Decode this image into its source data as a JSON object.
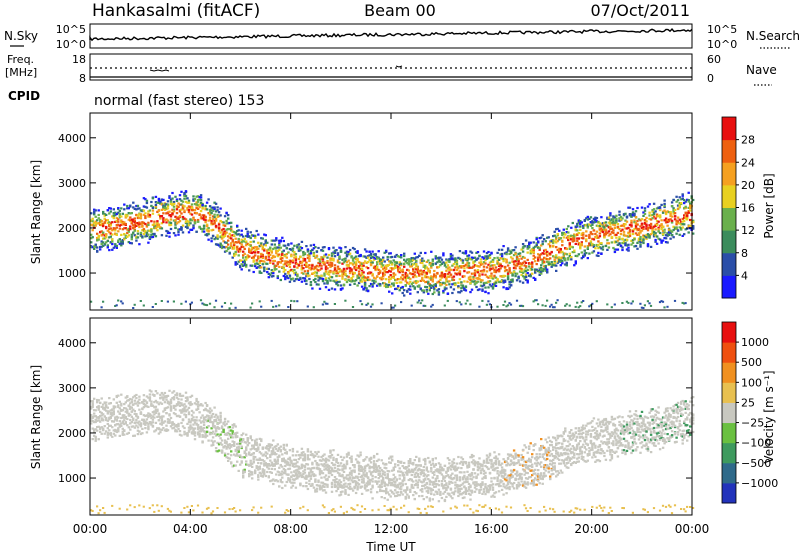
{
  "header": {
    "site": "Hankasalmi (fitACF)",
    "beam": "Beam 00",
    "date": "07/Oct/2011"
  },
  "nsky_panel": {
    "left_label": "N.Sky",
    "right_label": "N.Search",
    "left_ticks": [
      "10^5",
      "10^0"
    ],
    "right_ticks": [
      "10^5",
      "10^0"
    ]
  },
  "freq_panel": {
    "left_label_line1": "Freq.",
    "left_label_line2": "[MHz]",
    "right_label": "Nave",
    "left_ticks": [
      "18",
      "8"
    ],
    "right_ticks": [
      "60",
      "0"
    ]
  },
  "cpid": {
    "label": "CPID",
    "text": "normal (fast stereo) 153"
  },
  "time_axis": {
    "label": "Time UT",
    "ticks": [
      "00:00",
      "04:00",
      "08:00",
      "12:00",
      "16:00",
      "20:00",
      "00:00"
    ]
  },
  "chart_data": [
    {
      "type": "heatmap",
      "title": "",
      "ylabel": "Slant Range [km]",
      "xlabel": "Time UT",
      "xlim_hours": [
        0,
        24
      ],
      "ylim": [
        180,
        4550
      ],
      "yticks": [
        "1000",
        "2000",
        "3000",
        "4000"
      ],
      "colorbar": {
        "label": "Power [dB]",
        "ticks": [
          "4",
          "8",
          "12",
          "16",
          "20",
          "24",
          "28"
        ],
        "colors": [
          "#1a1aff",
          "#2a4ea8",
          "#3b8c5c",
          "#6ab04c",
          "#e8d020",
          "#f5a020",
          "#ee6010",
          "#e81010"
        ]
      },
      "echo_band": {
        "hours": [
          0,
          1,
          2,
          3,
          4,
          5,
          6,
          8,
          10,
          12,
          14,
          16,
          17,
          18,
          19,
          20,
          21,
          22,
          23,
          24
        ],
        "center_km": [
          1950,
          2050,
          2150,
          2300,
          2400,
          2100,
          1550,
          1250,
          1120,
          1030,
          1000,
          1080,
          1200,
          1400,
          1650,
          1850,
          1950,
          2050,
          2200,
          2350
        ]
      }
    },
    {
      "type": "heatmap",
      "title": "",
      "ylabel": "Slant Range [km]",
      "xlabel": "Time UT",
      "xlim_hours": [
        0,
        24
      ],
      "ylim": [
        180,
        4550
      ],
      "yticks": [
        "1000",
        "2000",
        "3000",
        "4000"
      ],
      "colorbar": {
        "label": "Velocity [m s⁻¹]",
        "ticks": [
          "1000",
          "500",
          "100",
          "25",
          "−25",
          "−100",
          "−500",
          "−1000"
        ],
        "colors": [
          "#2233bb",
          "#2f6a8a",
          "#3e9a5e",
          "#6ac040",
          "#c8c8c0",
          "#e8c050",
          "#f09020",
          "#ef5010",
          "#e81010"
        ]
      },
      "echo_band": {
        "hours": [
          0,
          1,
          2,
          3,
          4,
          5,
          6,
          8,
          10,
          12,
          14,
          16,
          17,
          18,
          19,
          20,
          21,
          22,
          23,
          24
        ],
        "center_km": [
          2300,
          2400,
          2450,
          2500,
          2400,
          2100,
          1550,
          1250,
          1120,
          1030,
          1000,
          1080,
          1200,
          1400,
          1650,
          1850,
          1950,
          2050,
          2200,
          2350
        ]
      }
    }
  ]
}
